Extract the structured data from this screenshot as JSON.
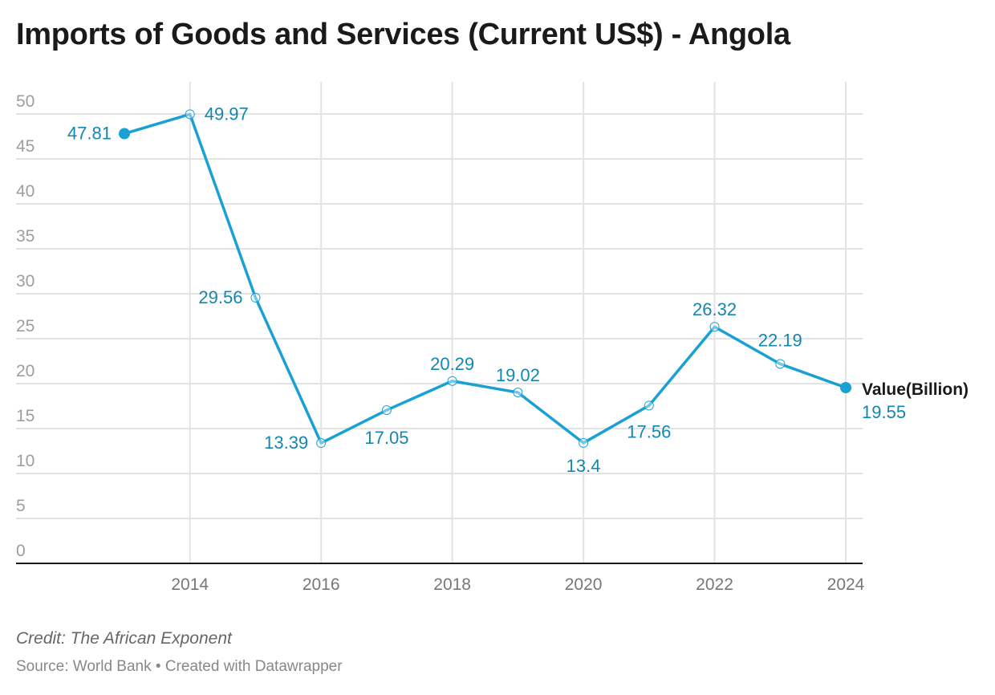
{
  "chart_data": {
    "type": "line",
    "title": "Imports of Goods and Services (Current US$) - Angola",
    "xlabel": "",
    "ylabel": "",
    "x": [
      2013,
      2014,
      2015,
      2016,
      2017,
      2018,
      2019,
      2020,
      2021,
      2022,
      2023,
      2024
    ],
    "series": [
      {
        "name": "Value(Billion)",
        "values": [
          47.81,
          49.97,
          29.56,
          13.39,
          17.05,
          20.29,
          19.02,
          13.4,
          17.56,
          26.32,
          22.19,
          19.55
        ],
        "labels": [
          "47.81",
          "49.97",
          "29.56",
          "13.39",
          "17.05",
          "20.29",
          "19.02",
          "13.4",
          "17.56",
          "26.32",
          "22.19",
          "19.55"
        ],
        "color": "#1aa1d3",
        "label_color": "#1387b0"
      }
    ],
    "xlim": [
      2013,
      2024
    ],
    "ylim": [
      0,
      50
    ],
    "y_ticks": [
      0,
      5,
      10,
      15,
      20,
      25,
      30,
      35,
      40,
      45,
      50
    ],
    "x_ticks": [
      2014,
      2016,
      2018,
      2020,
      2022,
      2024
    ],
    "grid": true,
    "legend": "end-of-line label"
  },
  "footer": {
    "credit": "Credit: The African Exponent",
    "source": "Source: World Bank • Created with Datawrapper"
  }
}
